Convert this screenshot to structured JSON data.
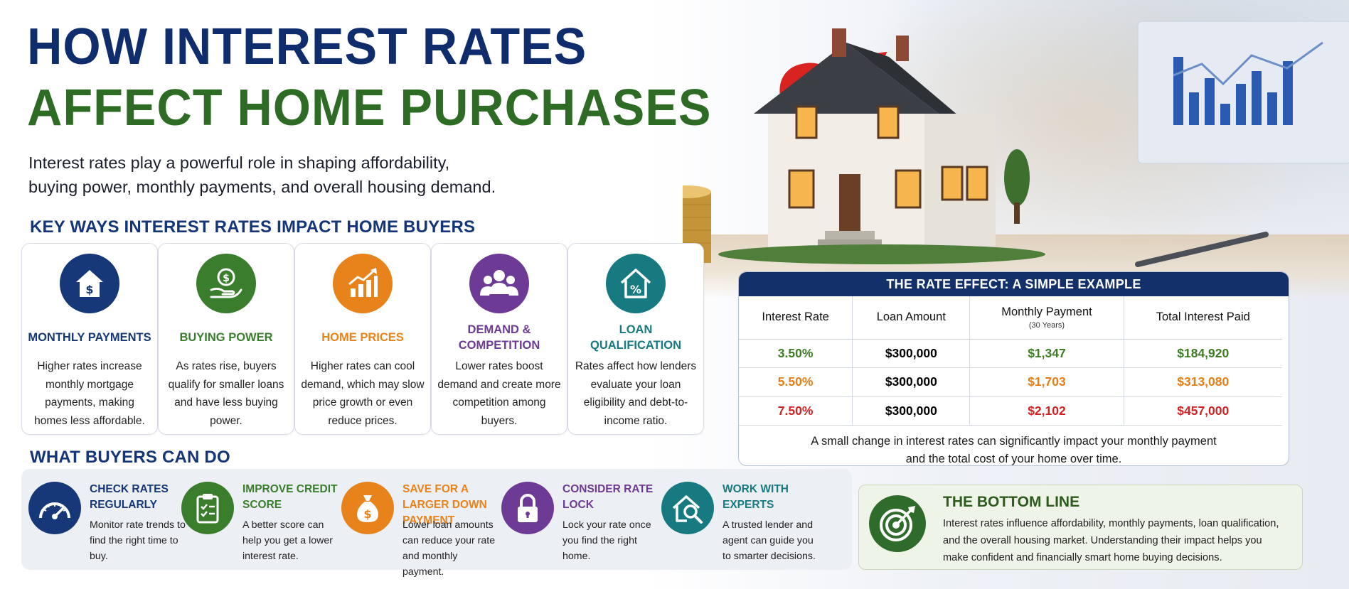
{
  "title": {
    "line1": "HOW INTEREST RATES",
    "line2": "AFFECT HOME PURCHASES"
  },
  "intro": {
    "line1": "Interest rates play a powerful role in shaping affordability,",
    "line2": "buying power, monthly payments, and overall housing demand."
  },
  "key_ways": {
    "heading": "KEY WAYS INTEREST RATES IMPACT HOME BUYERS",
    "cards": [
      {
        "icon": "house-dollar-icon",
        "color": "#163879",
        "title": "MONTHLY PAYMENTS",
        "text": "Higher rates increase monthly mortgage payments, making homes less affordable."
      },
      {
        "icon": "hand-coin-icon",
        "color": "#3a7d2d",
        "title": "BUYING POWER",
        "text": "As rates rise, buyers qualify for smaller loans and have less buying power."
      },
      {
        "icon": "rising-chart-icon",
        "color": "#e8831c",
        "title": "HOME PRICES",
        "text": "Higher rates can cool demand, which may slow price growth or even reduce prices."
      },
      {
        "icon": "people-group-icon",
        "color": "#6d3a95",
        "title": "DEMAND & COMPETITION",
        "text": "Lower rates boost demand and create more competition among buyers."
      },
      {
        "icon": "house-percent-icon",
        "color": "#177a80",
        "title": "LOAN QUALIFICATION",
        "text": "Rates affect how lenders evaluate your loan eligibility and debt-to-income ratio."
      }
    ]
  },
  "rate_effect": {
    "heading": "THE RATE EFFECT: A SIMPLE EXAMPLE",
    "columns": [
      "Interest Rate",
      "Loan Amount",
      "Monthly Payment",
      "Total Interest Paid"
    ],
    "monthly_sub": "(30 Years)",
    "rows": [
      {
        "rate": "3.50%",
        "loan": "$300,000",
        "payment": "$1,347",
        "interest": "$184,920",
        "color": "#3c7d22"
      },
      {
        "rate": "5.50%",
        "loan": "$300,000",
        "payment": "$1,703",
        "interest": "$313,080",
        "color": "#e57e16"
      },
      {
        "rate": "7.50%",
        "loan": "$300,000",
        "payment": "$2,102",
        "interest": "$457,000",
        "color": "#d32222"
      }
    ],
    "note_line1": "A small change in interest rates can significantly impact your monthly payment",
    "note_line2": "and the total cost of your home over time."
  },
  "buyers": {
    "heading": "WHAT BUYERS CAN DO",
    "tips": [
      {
        "icon": "speedometer-icon",
        "color": "#163879",
        "title": "CHECK RATES REGULARLY",
        "text": "Monitor rate trends to find the right time to buy."
      },
      {
        "icon": "clipboard-check-icon",
        "color": "#3a7d2d",
        "title": "IMPROVE CREDIT SCORE",
        "text": "A better score can help you get a lower interest rate."
      },
      {
        "icon": "money-bag-icon",
        "color": "#e8831c",
        "title": "SAVE FOR A LARGER DOWN PAYMENT",
        "text": "Lower loan amounts can reduce your rate and monthly payment."
      },
      {
        "icon": "padlock-icon",
        "color": "#6d3a95",
        "title": "CONSIDER RATE LOCK",
        "text": "Lock your rate once you find the right home."
      },
      {
        "icon": "house-search-icon",
        "color": "#177a80",
        "title": "WORK WITH EXPERTS",
        "text": "A trusted lender and agent can guide you to smarter decisions."
      }
    ]
  },
  "bottom_line": {
    "title": "THE BOTTOM LINE",
    "line1": "Interest rates influence affordability, monthly payments, loan qualification,",
    "line2": "and the overall housing market. Understanding their impact helps you",
    "line3": "make confident and financially smart home buying decisions."
  },
  "hero_percent": "%"
}
